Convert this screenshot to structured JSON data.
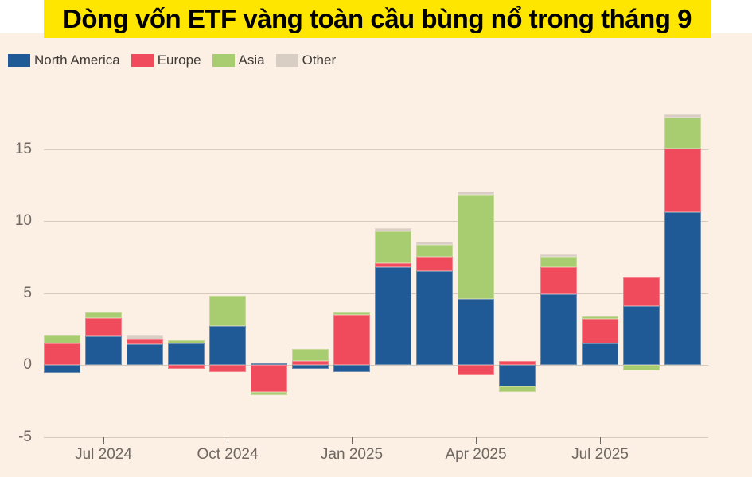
{
  "title": "Dòng vốn ETF vàng toàn cầu bùng nổ trong tháng 9",
  "colors": {
    "page_background": "#ffffff",
    "chart_background": "#fcefe3",
    "title_background": "#ffe600",
    "title_text": "#000000",
    "grid": "#d5cabe",
    "axis_text": "#6f6761",
    "legend_text": "#3f3a36"
  },
  "chart_data": {
    "type": "bar",
    "stacked": true,
    "title": "Dòng vốn ETF vàng toàn cầu bùng nổ trong tháng 9",
    "xlabel": "",
    "ylabel": "",
    "grid": true,
    "legend_position": "top-left",
    "ylim": [
      -5,
      17.5
    ],
    "yticks": [
      -5,
      0,
      5,
      10,
      15
    ],
    "categories": [
      "Jun 2024",
      "Jul 2024",
      "Aug 2024",
      "Sep 2024",
      "Oct 2024",
      "Nov 2024",
      "Dec 2024",
      "Jan 2025",
      "Feb 2025",
      "Mar 2025",
      "Apr 2025",
      "May 2025",
      "Jun 2025",
      "Jul 2025",
      "Aug 2025",
      "Sep 2025"
    ],
    "x_tick_indices": [
      1,
      4,
      7,
      10,
      13
    ],
    "x_tick_labels": [
      "Jul 2024",
      "Oct 2024",
      "Jan 2025",
      "Apr 2025",
      "Jul 2025"
    ],
    "series": [
      {
        "name": "North America",
        "color": "#1f5a96",
        "values": [
          -0.55,
          2.0,
          1.45,
          1.5,
          2.7,
          0.1,
          -0.3,
          -0.5,
          6.8,
          6.5,
          4.6,
          -1.5,
          4.9,
          1.5,
          4.1,
          10.6
        ]
      },
      {
        "name": "Europe",
        "color": "#f04b5d",
        "values": [
          1.5,
          1.25,
          0.3,
          -0.3,
          -0.5,
          -1.9,
          0.3,
          3.5,
          0.25,
          1.0,
          -0.7,
          0.3,
          1.9,
          1.7,
          2.0,
          4.45
        ]
      },
      {
        "name": "Asia",
        "color": "#a8cc70",
        "values": [
          0.55,
          0.4,
          0,
          0.2,
          2.1,
          -0.2,
          0.8,
          0.15,
          2.25,
          0.85,
          7.2,
          -0.4,
          0.7,
          0.15,
          -0.4,
          2.15
        ]
      },
      {
        "name": "Other",
        "color": "#d8cec4",
        "values": [
          0,
          0,
          0.3,
          0,
          0,
          0,
          0,
          0,
          0.2,
          0.2,
          0.25,
          0,
          0.2,
          0,
          0,
          0.2
        ]
      }
    ]
  }
}
